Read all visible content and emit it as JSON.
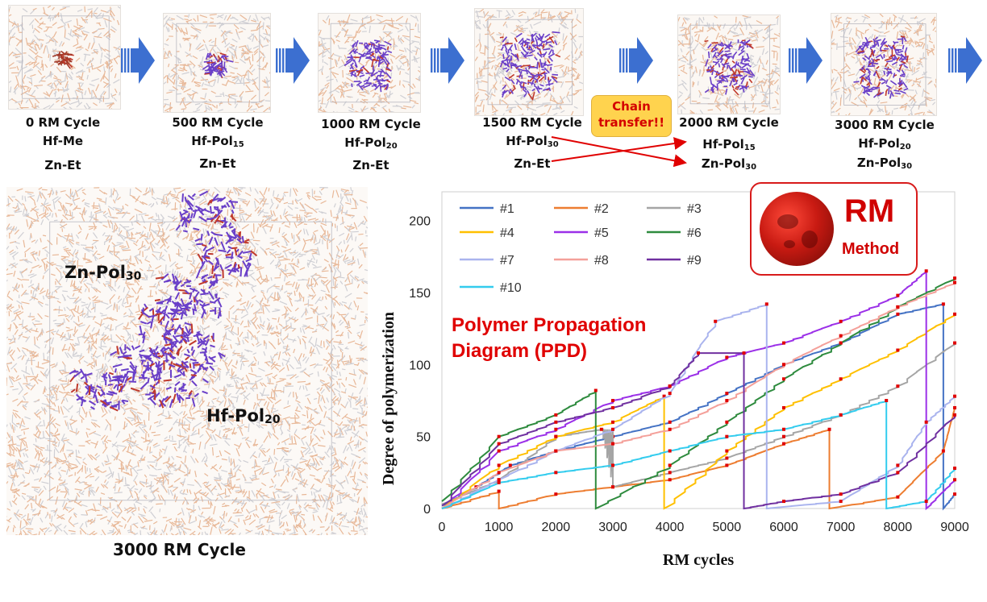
{
  "stages": [
    {
      "cycle": "0 RM Cycle",
      "hf": "Hf-Me",
      "zn": "Zn-Et",
      "hf_sub": "",
      "zn_sub": ""
    },
    {
      "cycle": "500 RM Cycle",
      "hf": "Hf-Pol",
      "hf_sub": "15",
      "zn": "Zn-Et",
      "zn_sub": ""
    },
    {
      "cycle": "1000 RM Cycle",
      "hf": "Hf-Pol",
      "hf_sub": "20",
      "zn": "Zn-Et",
      "zn_sub": ""
    },
    {
      "cycle": "1500 RM Cycle",
      "hf": "Hf-Pol",
      "hf_sub": "30",
      "zn": "Zn-Et",
      "zn_sub": ""
    },
    {
      "cycle": "2000 RM Cycle",
      "hf": "Hf-Pol",
      "hf_sub": "15",
      "zn": "Zn-Pol",
      "zn_sub": "30"
    },
    {
      "cycle": "3000 RM Cycle",
      "hf": "Hf-Pol",
      "hf_sub": "20",
      "zn": "Zn-Pol",
      "zn_sub": "30"
    }
  ],
  "chain_transfer": {
    "line1": "Chain",
    "line2": "transfer!!"
  },
  "big_view": {
    "zn_label": "Zn-Pol",
    "zn_sub": "30",
    "hf_label": "Hf-Pol",
    "hf_sub": "20",
    "caption": "3000 RM Cycle"
  },
  "badge": {
    "title": "RM",
    "subtitle": "Method"
  },
  "ppd": {
    "line1": "Polymer Propagation",
    "line2": "Diagram (PPD)"
  },
  "colors": {
    "accent_red": "#e00000",
    "arrow_blue": "#3c6fd0",
    "badge_border": "#d81b1b",
    "chain_box": "#ffd34e"
  },
  "chart_data": {
    "type": "line",
    "xlabel": "RM cycles",
    "ylabel": "Degree of polymerization",
    "xlim": [
      0,
      9000
    ],
    "ylim": [
      0,
      220
    ],
    "xticks": [
      0,
      1000,
      2000,
      3000,
      4000,
      5000,
      6000,
      7000,
      8000,
      9000
    ],
    "yticks": [
      0,
      50,
      100,
      150,
      200
    ],
    "grid": false,
    "legend_position": "top-left",
    "series": [
      {
        "name": "#1",
        "color": "#4472c4",
        "points": [
          [
            0,
            2
          ],
          [
            600,
            15
          ],
          [
            1200,
            30
          ],
          [
            2000,
            40
          ],
          [
            3000,
            50
          ],
          [
            4000,
            60
          ],
          [
            5000,
            80
          ],
          [
            6000,
            100
          ],
          [
            7000,
            115
          ],
          [
            8000,
            135
          ],
          [
            8800,
            142
          ],
          [
            8800,
            0
          ],
          [
            9000,
            10
          ]
        ]
      },
      {
        "name": "#2",
        "color": "#ed7d31",
        "points": [
          [
            0,
            0
          ],
          [
            1000,
            12
          ],
          [
            1000,
            0
          ],
          [
            2000,
            10
          ],
          [
            3000,
            15
          ],
          [
            4000,
            20
          ],
          [
            5000,
            30
          ],
          [
            6000,
            45
          ],
          [
            6800,
            55
          ],
          [
            6800,
            0
          ],
          [
            8000,
            8
          ],
          [
            8800,
            40
          ],
          [
            9000,
            70
          ]
        ]
      },
      {
        "name": "#3",
        "color": "#a5a5a5",
        "points": [
          [
            0,
            3
          ],
          [
            1000,
            20
          ],
          [
            2000,
            50
          ],
          [
            2800,
            55
          ],
          [
            3000,
            15
          ],
          [
            4000,
            25
          ],
          [
            5000,
            35
          ],
          [
            6000,
            50
          ],
          [
            7000,
            65
          ],
          [
            8000,
            85
          ],
          [
            9000,
            115
          ]
        ]
      },
      {
        "name": "#4",
        "color": "#ffc000",
        "points": [
          [
            0,
            0
          ],
          [
            1000,
            30
          ],
          [
            2000,
            50
          ],
          [
            3000,
            60
          ],
          [
            3900,
            78
          ],
          [
            3900,
            0
          ],
          [
            5000,
            40
          ],
          [
            6000,
            70
          ],
          [
            7000,
            90
          ],
          [
            8000,
            110
          ],
          [
            9000,
            135
          ]
        ]
      },
      {
        "name": "#5",
        "color": "#9b30e8",
        "points": [
          [
            0,
            0
          ],
          [
            1000,
            40
          ],
          [
            2000,
            55
          ],
          [
            3000,
            75
          ],
          [
            4000,
            85
          ],
          [
            5000,
            105
          ],
          [
            6000,
            115
          ],
          [
            7000,
            130
          ],
          [
            8000,
            148
          ],
          [
            8500,
            165
          ],
          [
            8500,
            0
          ],
          [
            9000,
            20
          ]
        ]
      },
      {
        "name": "#6",
        "color": "#2e8b3e",
        "points": [
          [
            0,
            5
          ],
          [
            1000,
            50
          ],
          [
            2000,
            65
          ],
          [
            2700,
            82
          ],
          [
            2700,
            0
          ],
          [
            4000,
            30
          ],
          [
            5000,
            60
          ],
          [
            6000,
            90
          ],
          [
            7000,
            115
          ],
          [
            8000,
            140
          ],
          [
            9000,
            160
          ]
        ]
      },
      {
        "name": "#7",
        "color": "#aab4ee",
        "points": [
          [
            0,
            0
          ],
          [
            1000,
            20
          ],
          [
            2000,
            40
          ],
          [
            3000,
            55
          ],
          [
            4000,
            80
          ],
          [
            4800,
            130
          ],
          [
            5700,
            142
          ],
          [
            5700,
            0
          ],
          [
            7000,
            5
          ],
          [
            8000,
            30
          ],
          [
            8500,
            60
          ],
          [
            9000,
            78
          ]
        ]
      },
      {
        "name": "#8",
        "color": "#f4a09a",
        "points": [
          [
            0,
            0
          ],
          [
            1000,
            25
          ],
          [
            2000,
            40
          ],
          [
            3000,
            45
          ],
          [
            4000,
            55
          ],
          [
            5000,
            75
          ],
          [
            6000,
            100
          ],
          [
            7000,
            120
          ],
          [
            8000,
            140
          ],
          [
            9000,
            157
          ]
        ]
      },
      {
        "name": "#9",
        "color": "#7030a0",
        "points": [
          [
            0,
            2
          ],
          [
            1000,
            45
          ],
          [
            2000,
            60
          ],
          [
            3000,
            70
          ],
          [
            4000,
            85
          ],
          [
            4500,
            108
          ],
          [
            5300,
            108
          ],
          [
            5300,
            0
          ],
          [
            6000,
            5
          ],
          [
            7000,
            10
          ],
          [
            8000,
            25
          ],
          [
            9000,
            65
          ]
        ]
      },
      {
        "name": "#10",
        "color": "#33ccee",
        "points": [
          [
            0,
            0
          ],
          [
            1000,
            18
          ],
          [
            2000,
            25
          ],
          [
            3000,
            30
          ],
          [
            4000,
            40
          ],
          [
            5000,
            50
          ],
          [
            6000,
            55
          ],
          [
            7000,
            65
          ],
          [
            7800,
            75
          ],
          [
            7800,
            0
          ],
          [
            8500,
            5
          ],
          [
            9000,
            28
          ]
        ]
      }
    ]
  }
}
